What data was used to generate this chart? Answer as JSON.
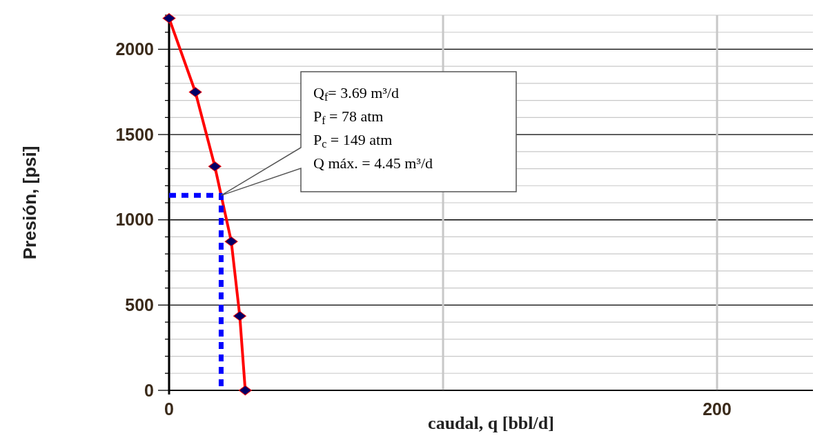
{
  "chart_data": {
    "type": "line",
    "xlabel": "caudal, q [bbl/d]",
    "ylabel": "Presión, [psi]",
    "xlim": [
      0,
      235
    ],
    "xticks": [
      0,
      {
        "value": 100,
        "label": null
      },
      200
    ],
    "ylim": [
      0,
      2200
    ],
    "yticks": [
      0,
      {
        "value": 100,
        "label": null
      },
      {
        "value": 200,
        "label": null
      },
      {
        "value": 300,
        "label": null
      },
      {
        "value": 400,
        "label": null
      },
      500,
      {
        "value": 600,
        "label": null
      },
      {
        "value": 700,
        "label": null
      },
      {
        "value": 800,
        "label": null
      },
      {
        "value": 900,
        "label": null
      },
      1000,
      {
        "value": 1100,
        "label": null
      },
      {
        "value": 1200,
        "label": null
      },
      {
        "value": 1300,
        "label": null
      },
      {
        "value": 1400,
        "label": null
      },
      1500,
      {
        "value": 1600,
        "label": null
      },
      {
        "value": 1700,
        "label": null
      },
      {
        "value": 1800,
        "label": null
      },
      {
        "value": 1900,
        "label": null
      },
      2000,
      {
        "value": 2100,
        "label": null
      },
      {
        "value": 2200,
        "label": null
      }
    ],
    "grid": true,
    "series": [
      {
        "color": "#ff0000",
        "x": [
          0,
          9.6,
          16.7,
          22.7,
          25.8,
          27.8
        ],
        "values": [
          2182,
          1749,
          1313,
          873,
          436,
          0
        ],
        "marker": "diamond",
        "line_style": "solid"
      },
      {
        "color": "#0000ff",
        "x": [
          0,
          19,
          19
        ],
        "values": [
          1143,
          1143,
          0
        ],
        "marker": "none",
        "line_style": "dashed"
      }
    ],
    "annotations": [
      "Q$_{f}$= 3.69 m³/d",
      "P$_{f}$ = 78 atm",
      "P$_{c}$ = 149 atm",
      "Q máx. = 4.45 m³/d"
    ]
  }
}
